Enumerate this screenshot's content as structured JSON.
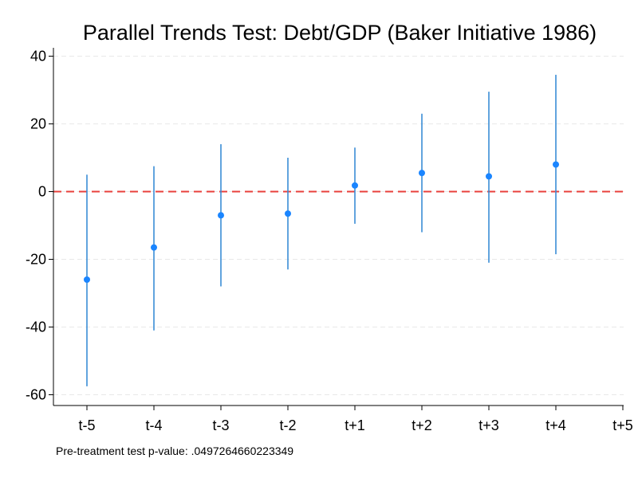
{
  "chart_data": {
    "type": "scatter",
    "title": "Parallel Trends Test: Debt/GDP (Baker Initiative 1986)",
    "xlabel": "",
    "ylabel": "",
    "categories": [
      "t-5",
      "t-4",
      "t-3",
      "t-2",
      "t+1",
      "t+2",
      "t+3",
      "t+4",
      "t+5"
    ],
    "series": [
      {
        "points": [
          {
            "x": "t-5",
            "y": -26.0,
            "ci_low": -57.5,
            "ci_high": 5.0
          },
          {
            "x": "t-4",
            "y": -16.5,
            "ci_low": -41.0,
            "ci_high": 7.5
          },
          {
            "x": "t-3",
            "y": -7.0,
            "ci_low": -28.0,
            "ci_high": 14.0
          },
          {
            "x": "t-2",
            "y": -6.5,
            "ci_low": -23.0,
            "ci_high": 10.0
          },
          {
            "x": "t+1",
            "y": 1.8,
            "ci_low": -9.5,
            "ci_high": 13.0
          },
          {
            "x": "t+2",
            "y": 5.5,
            "ci_low": -12.0,
            "ci_high": 23.0
          },
          {
            "x": "t+3",
            "y": 4.5,
            "ci_low": -21.0,
            "ci_high": 29.5
          },
          {
            "x": "t+4",
            "y": 8.0,
            "ci_low": -18.5,
            "ci_high": 34.5
          }
        ]
      }
    ],
    "yticks": [
      40,
      20,
      0,
      -20,
      -40,
      -60
    ],
    "ylim": [
      -63,
      43
    ],
    "reference_line": {
      "y": 0,
      "style": "dashed",
      "color": "#e8403b"
    },
    "point_color": "#1a85ff",
    "ci_color": "#3a8dd6",
    "grid": "horizontal dashed",
    "note": "Pre-treatment test p-value: .0497264660223349"
  }
}
